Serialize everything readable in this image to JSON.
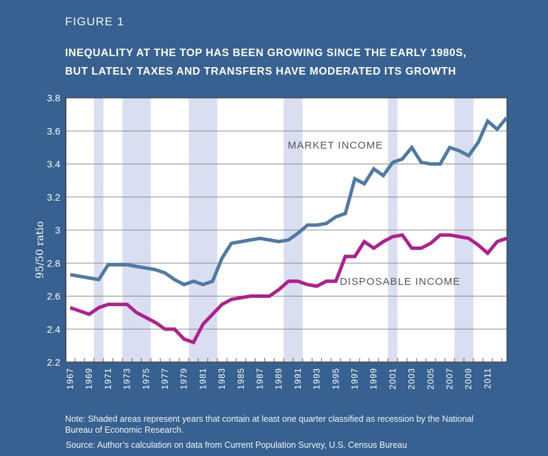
{
  "figure_label": "FIGURE 1",
  "title_lines": [
    "INEQUALITY AT THE TOP HAS BEEN GROWING SINCE THE EARLY 1980S,",
    "BUT LATELY TAXES AND TRANSFERS HAVE MODERATED ITS GROWTH"
  ],
  "note": "Note: Shaded areas represent years that contain at least one quarter classified as recession by the National Bureau of Economic Research.",
  "source": "Source: Author’s calculation on data from Current Population Survey, U.S. Census Bureau",
  "colors": {
    "background": "#366190",
    "plot_bg": "#ffffff",
    "recession": "#d9def1",
    "market": "#4f7aa3",
    "disposable": "#b01f8e",
    "grid": "#8a8a8a",
    "annotation": "#555555"
  },
  "chart_data": {
    "type": "line",
    "title": "INEQUALITY AT THE TOP HAS BEEN GROWING SINCE THE EARLY 1980S, BUT LATELY TAXES AND TRANSFERS HAVE MODERATED ITS GROWTH",
    "xlabel": "",
    "ylabel": "95/50 ratio",
    "ylim": [
      2.2,
      3.8
    ],
    "yticks": [
      2.2,
      2.4,
      2.6,
      2.8,
      3.0,
      3.2,
      3.4,
      3.6,
      3.8
    ],
    "ytick_labels": [
      "2.2",
      "2.4",
      "2.6",
      "2.8",
      "3",
      "3.2",
      "3.4",
      "3.6",
      "3.8"
    ],
    "xlim": [
      1967,
      2013
    ],
    "xtick_labels": [
      "1967",
      "1969",
      "1971",
      "1973",
      "1975",
      "1977",
      "1979",
      "1981",
      "1983",
      "1985",
      "1987",
      "1989",
      "1991",
      "1993",
      "1995",
      "1997",
      "1999",
      "2001",
      "2003",
      "2005",
      "2007",
      "2009",
      "2011"
    ],
    "grid": true,
    "legend": "inline-annotations",
    "recessions": [
      [
        1970,
        1970
      ],
      [
        1973,
        1975
      ],
      [
        1980,
        1982
      ],
      [
        1990,
        1991
      ],
      [
        2001,
        2001
      ],
      [
        2008,
        2009
      ]
    ],
    "x": [
      1967,
      1968,
      1969,
      1970,
      1971,
      1972,
      1973,
      1974,
      1975,
      1976,
      1977,
      1978,
      1979,
      1980,
      1981,
      1982,
      1983,
      1984,
      1985,
      1986,
      1987,
      1988,
      1989,
      1990,
      1991,
      1992,
      1993,
      1994,
      1995,
      1996,
      1997,
      1998,
      1999,
      2000,
      2001,
      2002,
      2003,
      2004,
      2005,
      2006,
      2007,
      2008,
      2009,
      2010,
      2011,
      2012,
      2013
    ],
    "series": [
      {
        "name": "MARKET INCOME",
        "values": [
          2.73,
          2.72,
          2.71,
          2.7,
          2.79,
          2.79,
          2.79,
          2.78,
          2.77,
          2.76,
          2.74,
          2.7,
          2.67,
          2.69,
          2.67,
          2.69,
          2.83,
          2.92,
          2.93,
          2.94,
          2.95,
          2.94,
          2.93,
          2.94,
          2.98,
          3.03,
          3.03,
          3.04,
          3.08,
          3.1,
          3.31,
          3.28,
          3.37,
          3.33,
          3.41,
          3.43,
          3.5,
          3.41,
          3.4,
          3.4,
          3.5,
          3.48,
          3.45,
          3.53,
          3.66,
          3.61,
          3.68
        ]
      },
      {
        "name": "DISPOSABLE INCOME",
        "values": [
          2.53,
          2.51,
          2.49,
          2.53,
          2.55,
          2.55,
          2.55,
          2.5,
          2.47,
          2.44,
          2.4,
          2.4,
          2.34,
          2.32,
          2.43,
          2.49,
          2.55,
          2.58,
          2.59,
          2.6,
          2.6,
          2.6,
          2.64,
          2.69,
          2.69,
          2.67,
          2.66,
          2.69,
          2.69,
          2.84,
          2.84,
          2.93,
          2.89,
          2.93,
          2.96,
          2.97,
          2.89,
          2.89,
          2.92,
          2.97,
          2.97,
          2.96,
          2.95,
          2.91,
          2.86,
          2.93,
          2.95
        ]
      }
    ],
    "annotations": [
      {
        "text": "MARKET INCOME",
        "series": "MARKET INCOME"
      },
      {
        "text": "DISPOSABLE INCOME",
        "series": "DISPOSABLE INCOME"
      }
    ]
  }
}
